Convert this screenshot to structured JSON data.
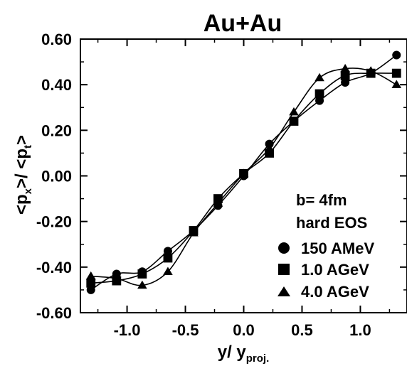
{
  "chart_data": {
    "type": "line",
    "title": "Au+Au",
    "xlabel_main": "y/ y",
    "xlabel_sub": "proj.",
    "ylabel": {
      "lt1": "<p",
      "sub1": "x",
      "mid": ">/ <p",
      "sub2": "t",
      "gt": ">"
    },
    "xlim": [
      -1.4,
      1.4
    ],
    "ylim": [
      -0.6,
      0.6
    ],
    "x_ticks": [
      -1.0,
      -0.5,
      0.0,
      0.5,
      1.0
    ],
    "x_tick_labels": [
      "-1.0",
      "-0.5",
      "0.0",
      "0.5",
      "1.0"
    ],
    "y_ticks": [
      -0.6,
      -0.4,
      -0.2,
      0.0,
      0.2,
      0.4,
      0.6
    ],
    "y_tick_labels": [
      "-0.60",
      "-0.40",
      "-0.20",
      "0.00",
      "0.20",
      "0.40",
      "0.60"
    ],
    "annotations": [
      "b= 4fm",
      "hard EOS"
    ],
    "series": [
      {
        "name": "150 AMeV",
        "marker": "circle",
        "x": [
          -1.31,
          -1.09,
          -0.87,
          -0.65,
          -0.43,
          -0.22,
          0.0,
          0.22,
          0.43,
          0.65,
          0.87,
          1.09,
          1.31
        ],
        "y": [
          -0.5,
          -0.43,
          -0.42,
          -0.33,
          -0.24,
          -0.13,
          0.0,
          0.14,
          0.24,
          0.33,
          0.41,
          0.45,
          0.53
        ]
      },
      {
        "name": "1.0 AGeV",
        "marker": "square",
        "x": [
          -1.31,
          -1.09,
          -0.87,
          -0.65,
          -0.43,
          -0.22,
          0.0,
          0.22,
          0.43,
          0.65,
          0.87,
          1.09,
          1.31
        ],
        "y": [
          -0.47,
          -0.46,
          -0.43,
          -0.36,
          -0.24,
          -0.1,
          0.01,
          0.1,
          0.24,
          0.36,
          0.44,
          0.45,
          0.45
        ]
      },
      {
        "name": "4.0 AGeV",
        "marker": "triangle",
        "x": [
          -1.31,
          -1.09,
          -0.87,
          -0.65,
          -0.43,
          -0.22,
          0.0,
          0.22,
          0.43,
          0.65,
          0.87,
          1.09,
          1.31
        ],
        "y": [
          -0.44,
          -0.45,
          -0.48,
          -0.42,
          -0.25,
          -0.12,
          0.01,
          0.12,
          0.28,
          0.43,
          0.47,
          0.46,
          0.4
        ]
      }
    ],
    "grid": false,
    "legend_position": "bottom-right"
  }
}
